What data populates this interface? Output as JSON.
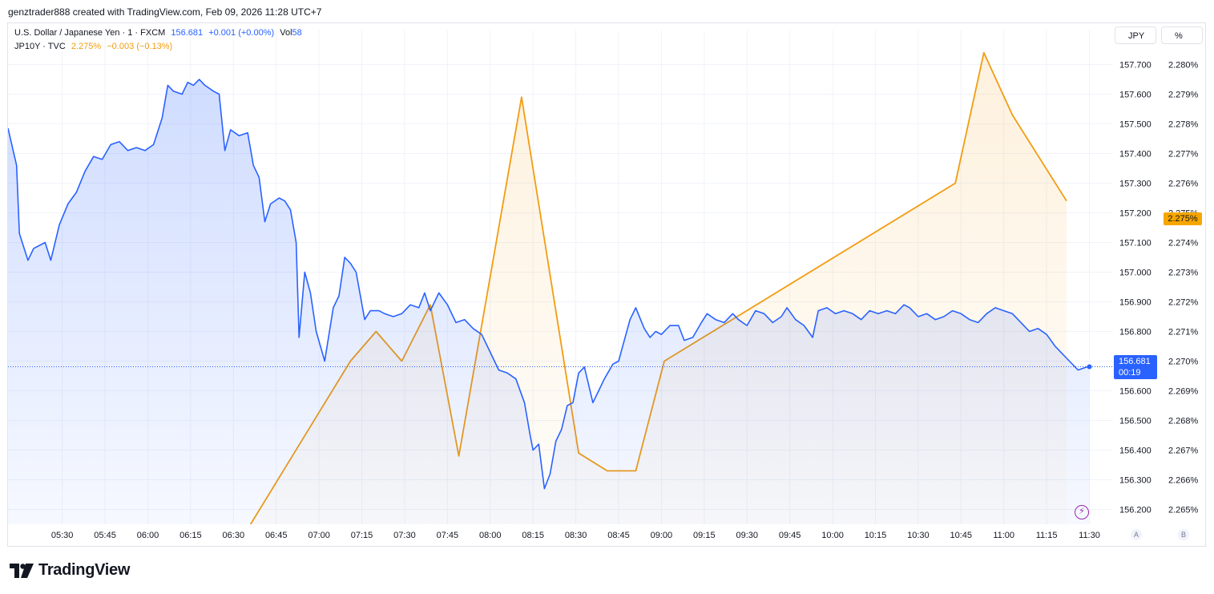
{
  "header": {
    "text": "genztrader888 created with TradingView.com, Feb 09, 2026 11:28 UTC+7"
  },
  "legend": {
    "line1": {
      "symbol": "U.S. Dollar / Japanese Yen · 1 · FXCM",
      "price": "156.681",
      "change": "+0.001 (+0.00%)",
      "vol_label": "Vol",
      "vol_value": "58"
    },
    "line2": {
      "symbol": "JP10Y · TVC",
      "price": "2.275%",
      "change": "−0.003 (−0.13%)"
    }
  },
  "units": {
    "left": "JPY",
    "right": "%"
  },
  "corners": {
    "a": "A",
    "b": "B"
  },
  "last_price": {
    "value": "156.681",
    "countdown": "00:19"
  },
  "last_yield": {
    "value": "2.275%"
  },
  "brand": {
    "name": "TradingView"
  },
  "colors": {
    "usdjpy": "#2962ff",
    "jp10y": "#f29c11",
    "grid": "#f0f3fa"
  },
  "chart_data": {
    "type": "line",
    "title": "",
    "x_axis": {
      "ticks": [
        "05:30",
        "05:45",
        "06:00",
        "06:15",
        "06:30",
        "06:45",
        "07:00",
        "07:15",
        "07:30",
        "07:45",
        "08:00",
        "08:15",
        "08:30",
        "08:45",
        "09:00",
        "09:15",
        "09:30",
        "09:45",
        "10:00",
        "10:15",
        "10:30",
        "10:45",
        "11:00",
        "11:15",
        "11:30"
      ],
      "range": [
        "05:11",
        "11:38"
      ]
    },
    "y_axis_left": {
      "label": "JPY",
      "ticks": [
        "157.700",
        "157.600",
        "157.500",
        "157.400",
        "157.300",
        "157.200",
        "157.100",
        "157.000",
        "156.900",
        "156.800",
        "156.700",
        "156.600",
        "156.500",
        "156.400",
        "156.300",
        "156.200"
      ],
      "ylim": [
        156.15,
        157.75
      ]
    },
    "y_axis_right": {
      "label": "%",
      "ticks": [
        "2.280%",
        "2.279%",
        "2.278%",
        "2.277%",
        "2.276%",
        "2.275%",
        "2.274%",
        "2.273%",
        "2.272%",
        "2.271%",
        "2.270%",
        "2.269%",
        "2.268%",
        "2.267%",
        "2.266%",
        "2.265%"
      ],
      "ylim": [
        2.2645,
        2.2805
      ]
    },
    "grid": true,
    "series": [
      {
        "name": "U.S. Dollar / Japanese Yen",
        "axis": "left",
        "points": [
          [
            "05:11",
            157.485
          ],
          [
            "05:14",
            157.36
          ],
          [
            "05:15",
            157.13
          ],
          [
            "05:18",
            157.04
          ],
          [
            "05:20",
            157.08
          ],
          [
            "05:24",
            157.1
          ],
          [
            "05:26",
            157.04
          ],
          [
            "05:29",
            157.16
          ],
          [
            "05:32",
            157.23
          ],
          [
            "05:35",
            157.27
          ],
          [
            "05:38",
            157.34
          ],
          [
            "05:41",
            157.39
          ],
          [
            "05:44",
            157.38
          ],
          [
            "05:47",
            157.43
          ],
          [
            "05:50",
            157.44
          ],
          [
            "05:53",
            157.41
          ],
          [
            "05:56",
            157.42
          ],
          [
            "05:59",
            157.41
          ],
          [
            "06:02",
            157.43
          ],
          [
            "06:05",
            157.52
          ],
          [
            "06:07",
            157.63
          ],
          [
            "06:09",
            157.61
          ],
          [
            "06:12",
            157.6
          ],
          [
            "06:14",
            157.64
          ],
          [
            "06:16",
            157.63
          ],
          [
            "06:18",
            157.65
          ],
          [
            "06:20",
            157.63
          ],
          [
            "06:23",
            157.61
          ],
          [
            "06:25",
            157.6
          ],
          [
            "06:27",
            157.41
          ],
          [
            "06:29",
            157.48
          ],
          [
            "06:32",
            157.46
          ],
          [
            "06:35",
            157.47
          ],
          [
            "06:37",
            157.36
          ],
          [
            "06:39",
            157.32
          ],
          [
            "06:41",
            157.17
          ],
          [
            "06:43",
            157.23
          ],
          [
            "06:46",
            157.25
          ],
          [
            "06:48",
            157.24
          ],
          [
            "06:50",
            157.21
          ],
          [
            "06:52",
            157.1
          ],
          [
            "06:53",
            156.78
          ],
          [
            "06:55",
            157.0
          ],
          [
            "06:57",
            156.93
          ],
          [
            "06:59",
            156.8
          ],
          [
            "07:02",
            156.7
          ],
          [
            "07:05",
            156.88
          ],
          [
            "07:07",
            156.92
          ],
          [
            "07:09",
            157.05
          ],
          [
            "07:11",
            157.03
          ],
          [
            "07:13",
            157.0
          ],
          [
            "07:16",
            156.84
          ],
          [
            "07:18",
            156.87
          ],
          [
            "07:21",
            156.87
          ],
          [
            "07:23",
            156.86
          ],
          [
            "07:26",
            156.85
          ],
          [
            "07:29",
            156.86
          ],
          [
            "07:32",
            156.89
          ],
          [
            "07:35",
            156.88
          ],
          [
            "07:37",
            156.93
          ],
          [
            "07:39",
            156.87
          ],
          [
            "07:42",
            156.93
          ],
          [
            "07:45",
            156.89
          ],
          [
            "07:48",
            156.83
          ],
          [
            "07:51",
            156.84
          ],
          [
            "07:54",
            156.81
          ],
          [
            "07:57",
            156.79
          ],
          [
            "08:00",
            156.73
          ],
          [
            "08:03",
            156.67
          ],
          [
            "08:06",
            156.66
          ],
          [
            "08:09",
            156.64
          ],
          [
            "08:12",
            156.56
          ],
          [
            "08:14",
            156.45
          ],
          [
            "08:15",
            156.4
          ],
          [
            "08:17",
            156.42
          ],
          [
            "08:19",
            156.27
          ],
          [
            "08:21",
            156.32
          ],
          [
            "08:23",
            156.43
          ],
          [
            "08:25",
            156.47
          ],
          [
            "08:27",
            156.55
          ],
          [
            "08:29",
            156.56
          ],
          [
            "08:31",
            156.66
          ],
          [
            "08:33",
            156.68
          ],
          [
            "08:36",
            156.56
          ],
          [
            "08:38",
            156.6
          ],
          [
            "08:40",
            156.64
          ],
          [
            "08:43",
            156.69
          ],
          [
            "08:45",
            156.7
          ],
          [
            "08:47",
            156.77
          ],
          [
            "08:49",
            156.84
          ],
          [
            "08:51",
            156.88
          ],
          [
            "08:54",
            156.81
          ],
          [
            "08:56",
            156.78
          ],
          [
            "08:58",
            156.8
          ],
          [
            "09:00",
            156.79
          ],
          [
            "09:03",
            156.82
          ],
          [
            "09:06",
            156.82
          ],
          [
            "09:08",
            156.77
          ],
          [
            "09:11",
            156.78
          ],
          [
            "09:14",
            156.83
          ],
          [
            "09:16",
            156.86
          ],
          [
            "09:19",
            156.84
          ],
          [
            "09:22",
            156.83
          ],
          [
            "09:25",
            156.86
          ],
          [
            "09:27",
            156.84
          ],
          [
            "09:30",
            156.82
          ],
          [
            "09:33",
            156.87
          ],
          [
            "09:36",
            156.86
          ],
          [
            "09:39",
            156.83
          ],
          [
            "09:42",
            156.85
          ],
          [
            "09:44",
            156.88
          ],
          [
            "09:47",
            156.84
          ],
          [
            "09:50",
            156.82
          ],
          [
            "09:53",
            156.78
          ],
          [
            "09:55",
            156.87
          ],
          [
            "09:58",
            156.88
          ],
          [
            "10:01",
            156.86
          ],
          [
            "10:04",
            156.87
          ],
          [
            "10:07",
            156.86
          ],
          [
            "10:10",
            156.84
          ],
          [
            "10:13",
            156.87
          ],
          [
            "10:16",
            156.86
          ],
          [
            "10:19",
            156.87
          ],
          [
            "10:22",
            156.86
          ],
          [
            "10:25",
            156.89
          ],
          [
            "10:27",
            156.88
          ],
          [
            "10:30",
            156.85
          ],
          [
            "10:33",
            156.86
          ],
          [
            "10:36",
            156.84
          ],
          [
            "10:39",
            156.85
          ],
          [
            "10:42",
            156.87
          ],
          [
            "10:45",
            156.86
          ],
          [
            "10:48",
            156.84
          ],
          [
            "10:51",
            156.83
          ],
          [
            "10:54",
            156.86
          ],
          [
            "10:57",
            156.88
          ],
          [
            "11:00",
            156.87
          ],
          [
            "11:03",
            156.86
          ],
          [
            "11:06",
            156.83
          ],
          [
            "11:09",
            156.8
          ],
          [
            "11:12",
            156.81
          ],
          [
            "11:15",
            156.79
          ],
          [
            "11:18",
            156.75
          ],
          [
            "11:20",
            156.73
          ],
          [
            "11:23",
            156.7
          ],
          [
            "11:26",
            156.67
          ],
          [
            "11:29",
            156.68
          ],
          [
            "11:30",
            156.681
          ]
        ]
      },
      {
        "name": "JP10Y",
        "axis": "right",
        "points": [
          [
            "06:36",
            2.2645
          ],
          [
            "07:11",
            2.27
          ],
          [
            "07:20",
            2.271
          ],
          [
            "07:29",
            2.27
          ],
          [
            "07:39",
            2.2719
          ],
          [
            "07:49",
            2.2668
          ],
          [
            "08:11",
            2.2789
          ],
          [
            "08:31",
            2.2669
          ],
          [
            "08:41",
            2.2663
          ],
          [
            "08:51",
            2.2663
          ],
          [
            "09:01",
            2.27
          ],
          [
            "10:43",
            2.276
          ],
          [
            "10:53",
            2.2804
          ],
          [
            "11:03",
            2.2783
          ],
          [
            "11:22",
            2.2754
          ]
        ]
      }
    ]
  }
}
